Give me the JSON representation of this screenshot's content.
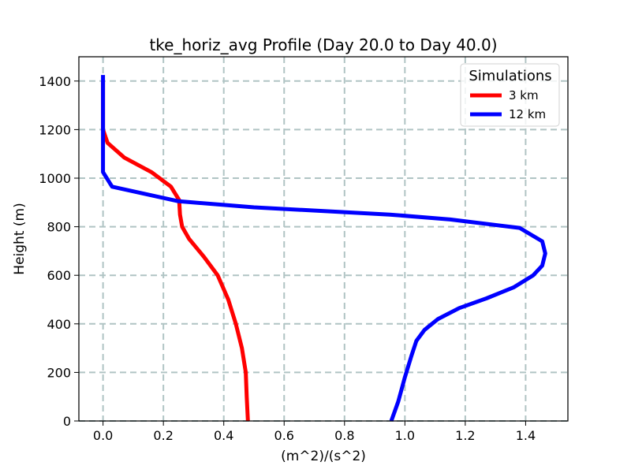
{
  "chart_data": {
    "type": "line",
    "title": "tke_horiz_avg Profile (Day 20.0 to Day 40.0)",
    "xlabel": "(m^2)/(s^2)",
    "ylabel": "Height (m)",
    "xlim": [
      -0.08,
      1.54
    ],
    "ylim": [
      0,
      1500
    ],
    "x_ticks": [
      0.0,
      0.2,
      0.4,
      0.6,
      0.8,
      1.0,
      1.2,
      1.4
    ],
    "x_tick_labels": [
      "0.0",
      "0.2",
      "0.4",
      "0.6",
      "0.8",
      "1.0",
      "1.2",
      "1.4"
    ],
    "y_ticks": [
      0,
      200,
      400,
      600,
      800,
      1000,
      1200,
      1400
    ],
    "y_tick_labels": [
      "0",
      "200",
      "400",
      "600",
      "800",
      "1000",
      "1200",
      "1400"
    ],
    "grid": true,
    "legend": {
      "title": "Simulations",
      "position": "top-right"
    },
    "series": [
      {
        "name": "3 km",
        "color": "#ff0000",
        "points": [
          [
            0.48,
            0
          ],
          [
            0.476,
            100
          ],
          [
            0.473,
            200
          ],
          [
            0.46,
            300
          ],
          [
            0.44,
            400
          ],
          [
            0.415,
            500
          ],
          [
            0.38,
            600
          ],
          [
            0.335,
            675
          ],
          [
            0.285,
            750
          ],
          [
            0.262,
            800
          ],
          [
            0.255,
            850
          ],
          [
            0.252,
            910
          ],
          [
            0.225,
            965
          ],
          [
            0.16,
            1025
          ],
          [
            0.07,
            1085
          ],
          [
            0.015,
            1145
          ],
          [
            0.0,
            1200
          ],
          [
            0.0,
            1300
          ],
          [
            0.0,
            1400
          ]
        ]
      },
      {
        "name": "12 km",
        "color": "#0000ff",
        "points": [
          [
            0.955,
            0
          ],
          [
            0.978,
            80
          ],
          [
            1.0,
            180
          ],
          [
            1.022,
            270
          ],
          [
            1.038,
            330
          ],
          [
            1.065,
            375
          ],
          [
            1.11,
            420
          ],
          [
            1.18,
            465
          ],
          [
            1.27,
            505
          ],
          [
            1.36,
            550
          ],
          [
            1.425,
            600
          ],
          [
            1.455,
            640
          ],
          [
            1.465,
            690
          ],
          [
            1.455,
            740
          ],
          [
            1.38,
            795
          ],
          [
            1.15,
            830
          ],
          [
            0.95,
            850
          ],
          [
            0.5,
            880
          ],
          [
            0.25,
            905
          ],
          [
            0.03,
            965
          ],
          [
            0.0,
            1025
          ],
          [
            0.0,
            1100
          ],
          [
            0.0,
            1200
          ],
          [
            0.0,
            1300
          ],
          [
            0.0,
            1425
          ]
        ]
      }
    ]
  }
}
